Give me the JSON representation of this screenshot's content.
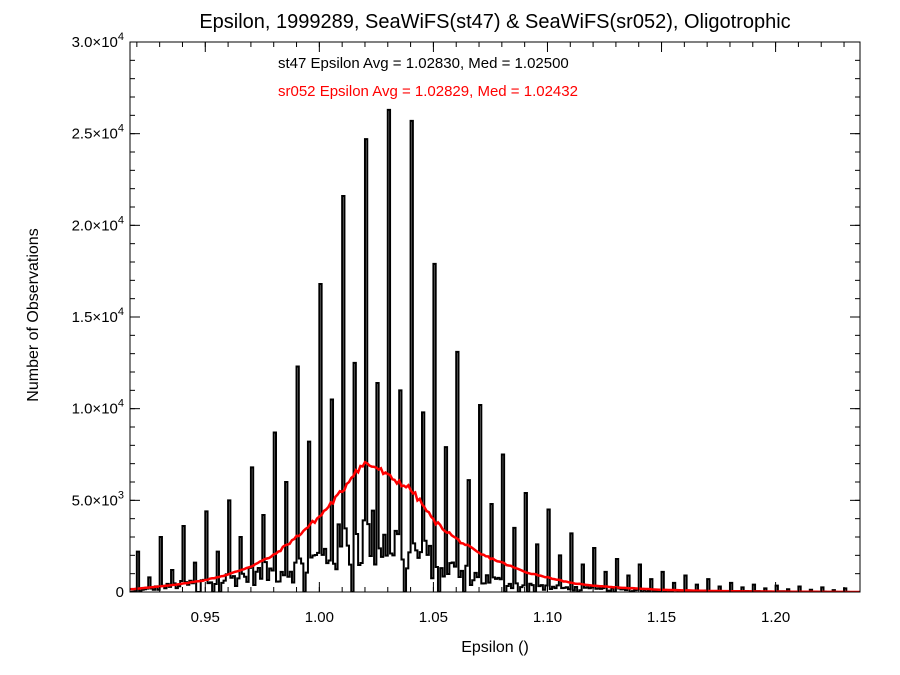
{
  "chart_data": {
    "type": "line",
    "title": "Epsilon, 1999289, SeaWiFS(st47) & SeaWiFS(sr052), Oligotrophic",
    "xlabel": "Epsilon ()",
    "ylabel": "Number of Observations",
    "xlim": [
      0.917,
      1.237
    ],
    "ylim": [
      0,
      30000
    ],
    "x_ticks": [
      0.95,
      1.0,
      1.05,
      1.1,
      1.15,
      1.2
    ],
    "x_tick_labels": [
      "0.95",
      "1.00",
      "1.05",
      "1.10",
      "1.15",
      "1.20"
    ],
    "y_ticks": [
      0,
      5000,
      10000,
      15000,
      20000,
      25000,
      30000
    ],
    "y_tick_labels": [
      {
        "mant": "0",
        "exp": ""
      },
      {
        "mant": "5.0×10",
        "exp": "3"
      },
      {
        "mant": "1.0×10",
        "exp": "4"
      },
      {
        "mant": "1.5×10",
        "exp": "4"
      },
      {
        "mant": "2.0×10",
        "exp": "4"
      },
      {
        "mant": "2.5×10",
        "exp": "4"
      },
      {
        "mant": "3.0×10",
        "exp": "4"
      }
    ],
    "annotations": [
      {
        "text": "st47 Epsilon Avg = 1.02830, Med = 1.02500",
        "color": "#000000"
      },
      {
        "text": "sr052 Epsilon Avg = 1.02829, Med = 1.02432",
        "color": "#ff0000"
      }
    ],
    "series": [
      {
        "style": "histogram",
        "color": "#000000",
        "bin_width": 0.001,
        "spikes": [
          [
            0.92,
            2200
          ],
          [
            0.925,
            800
          ],
          [
            0.93,
            3000
          ],
          [
            0.935,
            1200
          ],
          [
            0.94,
            3600
          ],
          [
            0.945,
            1600
          ],
          [
            0.95,
            4400
          ],
          [
            0.955,
            2200
          ],
          [
            0.96,
            5000
          ],
          [
            0.965,
            3000
          ],
          [
            0.97,
            6800
          ],
          [
            0.975,
            4200
          ],
          [
            0.98,
            8700
          ],
          [
            0.985,
            6000
          ],
          [
            0.99,
            12300
          ],
          [
            0.995,
            8200
          ],
          [
            1.0,
            16800
          ],
          [
            1.005,
            10500
          ],
          [
            1.01,
            21600
          ],
          [
            1.015,
            12500
          ],
          [
            1.02,
            24700
          ],
          [
            1.025,
            11400
          ],
          [
            1.03,
            26300
          ],
          [
            1.035,
            11000
          ],
          [
            1.04,
            25700
          ],
          [
            1.045,
            9800
          ],
          [
            1.05,
            17900
          ],
          [
            1.055,
            7900
          ],
          [
            1.06,
            13100
          ],
          [
            1.065,
            6100
          ],
          [
            1.07,
            10200
          ],
          [
            1.075,
            4800
          ],
          [
            1.08,
            7500
          ],
          [
            1.085,
            3500
          ],
          [
            1.09,
            5400
          ],
          [
            1.095,
            2600
          ],
          [
            1.1,
            4500
          ],
          [
            1.105,
            2000
          ],
          [
            1.11,
            3200
          ],
          [
            1.115,
            1500
          ],
          [
            1.12,
            2400
          ],
          [
            1.125,
            1100
          ],
          [
            1.13,
            1800
          ],
          [
            1.135,
            900
          ],
          [
            1.14,
            1500
          ],
          [
            1.145,
            700
          ],
          [
            1.15,
            1100
          ],
          [
            1.155,
            500
          ],
          [
            1.16,
            900
          ],
          [
            1.165,
            400
          ],
          [
            1.17,
            700
          ],
          [
            1.175,
            300
          ],
          [
            1.18,
            500
          ],
          [
            1.185,
            250
          ],
          [
            1.19,
            400
          ],
          [
            1.195,
            200
          ],
          [
            1.2,
            350
          ],
          [
            1.205,
            150
          ],
          [
            1.21,
            300
          ],
          [
            1.215,
            120
          ],
          [
            1.22,
            250
          ],
          [
            1.225,
            100
          ],
          [
            1.23,
            200
          ]
        ],
        "baseline": [
          [
            0.917,
            0
          ],
          [
            0.93,
            250
          ],
          [
            0.95,
            550
          ],
          [
            0.97,
            900
          ],
          [
            0.99,
            1300
          ],
          [
            1.0,
            1800
          ],
          [
            1.01,
            2500
          ],
          [
            1.02,
            3000
          ],
          [
            1.03,
            2800
          ],
          [
            1.04,
            2200
          ],
          [
            1.05,
            1600
          ],
          [
            1.06,
            1100
          ],
          [
            1.07,
            750
          ],
          [
            1.08,
            500
          ],
          [
            1.09,
            350
          ],
          [
            1.1,
            250
          ],
          [
            1.12,
            150
          ],
          [
            1.15,
            80
          ],
          [
            1.18,
            40
          ],
          [
            1.21,
            20
          ],
          [
            1.237,
            0
          ]
        ]
      },
      {
        "style": "line",
        "color": "#ff0000",
        "points": [
          [
            0.917,
            150
          ],
          [
            0.92,
            180
          ],
          [
            0.93,
            300
          ],
          [
            0.94,
            450
          ],
          [
            0.95,
            650
          ],
          [
            0.96,
            950
          ],
          [
            0.97,
            1400
          ],
          [
            0.98,
            2000
          ],
          [
            0.99,
            3000
          ],
          [
            1.0,
            4100
          ],
          [
            1.005,
            4800
          ],
          [
            1.01,
            5500
          ],
          [
            1.015,
            6500
          ],
          [
            1.02,
            7000
          ],
          [
            1.025,
            6800
          ],
          [
            1.03,
            6300
          ],
          [
            1.035,
            6000
          ],
          [
            1.04,
            5600
          ],
          [
            1.045,
            4800
          ],
          [
            1.05,
            3900
          ],
          [
            1.055,
            3400
          ],
          [
            1.06,
            2900
          ],
          [
            1.07,
            2100
          ],
          [
            1.08,
            1600
          ],
          [
            1.09,
            1100
          ],
          [
            1.1,
            800
          ],
          [
            1.11,
            500
          ],
          [
            1.12,
            350
          ],
          [
            1.13,
            250
          ],
          [
            1.15,
            120
          ],
          [
            1.17,
            60
          ],
          [
            1.19,
            30
          ],
          [
            1.21,
            15
          ],
          [
            1.237,
            0
          ]
        ]
      }
    ]
  }
}
